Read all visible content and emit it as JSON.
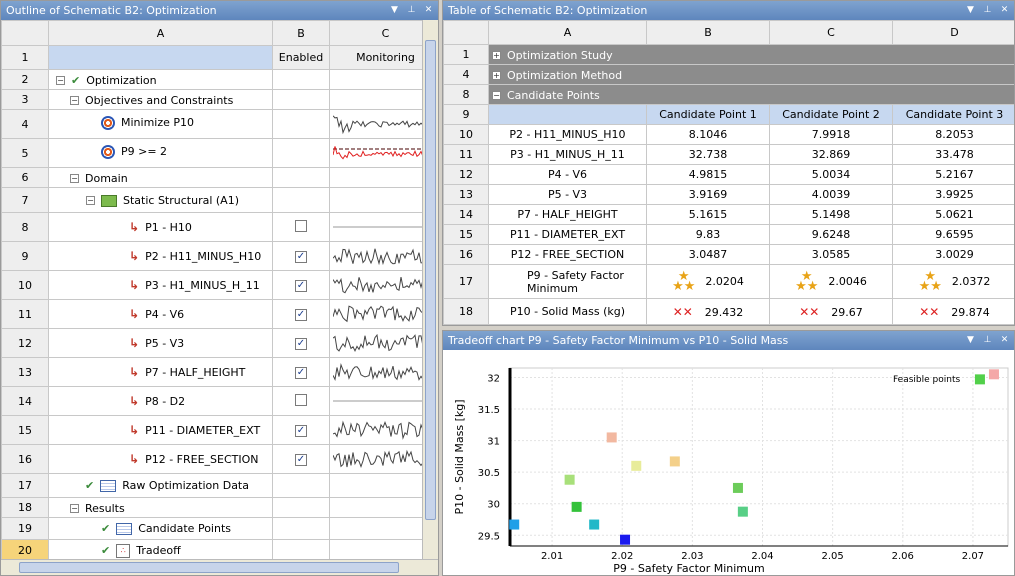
{
  "outline": {
    "title": "Outline of Schematic B2: Optimization",
    "col_letters": [
      "A",
      "B",
      "C"
    ],
    "headers": {
      "enabled": "Enabled",
      "monitoring": "Monitoring"
    },
    "rows": [
      {
        "num": "1",
        "label": "",
        "type": "header"
      },
      {
        "num": "2",
        "label": "Optimization",
        "indent": 0,
        "expander": "−",
        "icon": "check-icon"
      },
      {
        "num": "3",
        "label": "Objectives and Constraints",
        "indent": 1,
        "expander": "−",
        "icon": ""
      },
      {
        "num": "4",
        "label": "Minimize P10",
        "indent": 2,
        "icon": "target-icon",
        "monitor": "normal"
      },
      {
        "num": "5",
        "label": "P9 >= 2",
        "indent": 2,
        "icon": "target-icon",
        "monitor": "constraint"
      },
      {
        "num": "6",
        "label": "Domain",
        "indent": 1,
        "expander": "−",
        "icon": ""
      },
      {
        "num": "7",
        "label": "Static Structural (A1)",
        "indent": 2,
        "expander": "−",
        "icon": "static-structural-icon"
      },
      {
        "num": "8",
        "label": "P1 - H10",
        "indent": 3,
        "icon": "parameter-icon",
        "enabled": false,
        "monitor": "flat"
      },
      {
        "num": "9",
        "label": "P2 - H11_MINUS_H10",
        "indent": 3,
        "icon": "parameter-icon",
        "enabled": true,
        "monitor": "noisy"
      },
      {
        "num": "10",
        "label": "P3 - H1_MINUS_H_11",
        "indent": 3,
        "icon": "parameter-icon",
        "enabled": true,
        "monitor": "noisy"
      },
      {
        "num": "11",
        "label": "P4 - V6",
        "indent": 3,
        "icon": "parameter-icon",
        "enabled": true,
        "monitor": "noisy"
      },
      {
        "num": "12",
        "label": "P5 - V3",
        "indent": 3,
        "icon": "parameter-icon",
        "enabled": true,
        "monitor": "noisy"
      },
      {
        "num": "13",
        "label": "P7 - HALF_HEIGHT",
        "indent": 3,
        "icon": "parameter-icon",
        "enabled": true,
        "monitor": "noisy"
      },
      {
        "num": "14",
        "label": "P8 - D2",
        "indent": 3,
        "icon": "parameter-icon",
        "enabled": false,
        "monitor": "flat"
      },
      {
        "num": "15",
        "label": "P11 - DIAMETER_EXT",
        "indent": 3,
        "icon": "parameter-icon",
        "enabled": true,
        "monitor": "noisy"
      },
      {
        "num": "16",
        "label": "P12 - FREE_SECTION",
        "indent": 3,
        "icon": "parameter-icon",
        "enabled": true,
        "monitor": "noisy"
      },
      {
        "num": "17",
        "label": "Raw Optimization Data",
        "indent": 1,
        "icon": "table-icon",
        "check": true
      },
      {
        "num": "18",
        "label": "Results",
        "indent": 1,
        "expander": "−",
        "icon": ""
      },
      {
        "num": "19",
        "label": "Candidate Points",
        "indent": 2,
        "icon": "table-icon",
        "check": true
      },
      {
        "num": "20",
        "label": "Tradeoff",
        "indent": 2,
        "icon": "tradeoff-icon",
        "check": true,
        "selected": true
      }
    ]
  },
  "table": {
    "title": "Table of Schematic B2: Optimization",
    "col_letters": [
      "A",
      "B",
      "C",
      "D"
    ],
    "sections": [
      {
        "num": "1",
        "label": "Optimization Study",
        "expander": "+"
      },
      {
        "num": "4",
        "label": "Optimization Method",
        "expander": "+"
      },
      {
        "num": "8",
        "label": "Candidate Points",
        "expander": "−"
      }
    ],
    "header_num": "9",
    "candidates": [
      "Candidate Point 1",
      "Candidate Point 2",
      "Candidate Point 3"
    ],
    "rows": [
      {
        "num": "10",
        "label": "P2 - H11_MINUS_H10",
        "values": [
          "8.1046",
          "7.9918",
          "8.2053"
        ]
      },
      {
        "num": "11",
        "label": "P3 - H1_MINUS_H_11",
        "values": [
          "32.738",
          "32.869",
          "33.478"
        ]
      },
      {
        "num": "12",
        "label": "P4 - V6",
        "values": [
          "4.9815",
          "5.0034",
          "5.2167"
        ]
      },
      {
        "num": "13",
        "label": "P5 - V3",
        "values": [
          "3.9169",
          "4.0039",
          "3.9925"
        ]
      },
      {
        "num": "14",
        "label": "P7 - HALF_HEIGHT",
        "values": [
          "5.1615",
          "5.1498",
          "5.0621"
        ]
      },
      {
        "num": "15",
        "label": "P11 - DIAMETER_EXT",
        "values": [
          "9.83",
          "9.6248",
          "9.6595"
        ]
      },
      {
        "num": "16",
        "label": "P12 - FREE_SECTION",
        "values": [
          "3.0487",
          "3.0585",
          "3.0029"
        ]
      }
    ],
    "row17": {
      "num": "17",
      "label": "P9 - Safety Factor Minimum",
      "values": [
        "2.0204",
        "2.0046",
        "2.0372"
      ],
      "rating": "three-stars"
    },
    "row18": {
      "num": "18",
      "label": "P10 - Solid Mass (kg)",
      "values": [
        "29.432",
        "29.67",
        "29.874"
      ],
      "rating": "two-crosses"
    }
  },
  "chart_panel": {
    "title": "Tradeoff chart P9 - Safety Factor Minimum vs P10 - Solid Mass"
  },
  "chart_data": {
    "type": "scatter",
    "xlabel": "P9 - Safety Factor Minimum",
    "ylabel": "P10 - Solid Mass  [kg]",
    "xlim": [
      2.004,
      2.075
    ],
    "ylim": [
      29.33,
      32.15
    ],
    "xticks": [
      "2.01",
      "2.02",
      "2.03",
      "2.04",
      "2.05",
      "2.06",
      "2.07"
    ],
    "yticks": [
      "29.5",
      "30",
      "30.5",
      "31",
      "31.5",
      "32"
    ],
    "legend": {
      "label": "Feasible points",
      "position": "top-right"
    },
    "points": [
      {
        "x": 2.0046,
        "y": 29.67,
        "color": "#1f9fe8"
      },
      {
        "x": 2.0125,
        "y": 30.38,
        "color": "#a8e07a"
      },
      {
        "x": 2.0135,
        "y": 29.95,
        "color": "#33c23a"
      },
      {
        "x": 2.016,
        "y": 29.67,
        "color": "#22b8c8"
      },
      {
        "x": 2.0185,
        "y": 31.05,
        "color": "#f2b8a0"
      },
      {
        "x": 2.0204,
        "y": 29.43,
        "color": "#1a1aee"
      },
      {
        "x": 2.022,
        "y": 30.6,
        "color": "#e8ec9a"
      },
      {
        "x": 2.0275,
        "y": 30.67,
        "color": "#f4d08a"
      },
      {
        "x": 2.0365,
        "y": 30.25,
        "color": "#6ccc5a"
      },
      {
        "x": 2.0372,
        "y": 29.874,
        "color": "#58cf86"
      },
      {
        "x": 2.071,
        "y": 31.97,
        "color": "#52d04a"
      },
      {
        "x": 2.073,
        "y": 32.05,
        "color": "#f4a8a8"
      }
    ]
  }
}
